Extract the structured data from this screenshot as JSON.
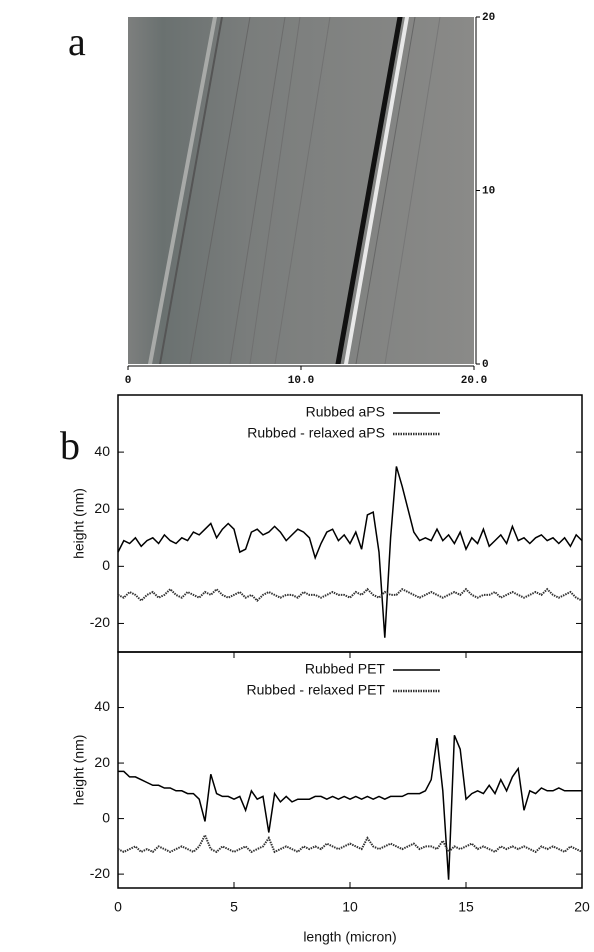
{
  "chart_data": [
    {
      "type": "image",
      "label": "a",
      "xlim": [
        0,
        20
      ],
      "ylim": [
        0,
        20
      ],
      "xticks": [
        0,
        {
          "value": 10,
          "label": "10.0"
        },
        {
          "value": 20,
          "label": "20.0"
        }
      ],
      "yticks": [
        0,
        10,
        20
      ]
    },
    {
      "type": "line",
      "label": "b",
      "ylabel": "height (nm)",
      "xlim": [
        0,
        20
      ],
      "ylim": [
        -30,
        60
      ],
      "yticks": [
        -20,
        0,
        20,
        40
      ],
      "legend": "top",
      "x": [
        0,
        0.25,
        0.5,
        0.75,
        1,
        1.25,
        1.5,
        1.75,
        2,
        2.25,
        2.5,
        2.75,
        3,
        3.25,
        3.5,
        3.75,
        4,
        4.25,
        4.5,
        4.75,
        5,
        5.25,
        5.5,
        5.75,
        6,
        6.25,
        6.5,
        6.75,
        7,
        7.25,
        7.5,
        7.75,
        8,
        8.25,
        8.5,
        8.75,
        9,
        9.25,
        9.5,
        9.75,
        10,
        10.25,
        10.5,
        10.75,
        11,
        11.25,
        11.5,
        11.75,
        12,
        12.25,
        12.5,
        12.75,
        13,
        13.25,
        13.5,
        13.75,
        14,
        14.25,
        14.5,
        14.75,
        15,
        15.25,
        15.5,
        15.75,
        16,
        16.25,
        16.5,
        16.75,
        17,
        17.25,
        17.5,
        17.75,
        18,
        18.25,
        18.5,
        18.75,
        19,
        19.25,
        19.5,
        19.75,
        20
      ],
      "series": [
        {
          "name": "Rubbed aPS",
          "color": "#000000",
          "style": "solid",
          "values": [
            5,
            9,
            8,
            10,
            7,
            9,
            10,
            8,
            11,
            9,
            8,
            10,
            9,
            12,
            11,
            13,
            15,
            10,
            13,
            15,
            13,
            5,
            6,
            12,
            13,
            11,
            12,
            14,
            12,
            9,
            11,
            13,
            12,
            10,
            3,
            8,
            12,
            13,
            9,
            11,
            8,
            12,
            6,
            18,
            19,
            5,
            -25,
            10,
            35,
            28,
            20,
            12,
            9,
            10,
            9,
            13,
            9,
            11,
            8,
            12,
            6,
            10,
            8,
            13,
            7,
            9,
            11,
            8,
            14,
            9,
            10,
            8,
            10,
            11,
            9,
            10,
            8,
            10,
            7,
            11,
            9
          ]
        },
        {
          "name": "Rubbed - relaxed aPS",
          "color": "#333333",
          "style": "dotted",
          "values": [
            -10,
            -11,
            -9,
            -10,
            -12,
            -10,
            -9,
            -11,
            -10,
            -8,
            -10,
            -11,
            -9,
            -10,
            -11,
            -9,
            -10,
            -8,
            -10,
            -11,
            -10,
            -9,
            -11,
            -10,
            -12,
            -10,
            -9,
            -10,
            -11,
            -10,
            -10,
            -11,
            -9,
            -10,
            -10,
            -11,
            -10,
            -9,
            -10,
            -10,
            -11,
            -9,
            -10,
            -8,
            -10,
            -11,
            -9,
            -10,
            -10,
            -8,
            -9,
            -10,
            -11,
            -10,
            -9,
            -10,
            -11,
            -10,
            -9,
            -10,
            -8,
            -10,
            -11,
            -10,
            -10,
            -9,
            -11,
            -10,
            -9,
            -10,
            -11,
            -10,
            -9,
            -10,
            -8,
            -10,
            -11,
            -10,
            -9,
            -11,
            -12
          ]
        }
      ]
    },
    {
      "type": "line",
      "ylabel": "height (nm)",
      "xlabel": "length (micron)",
      "xlim": [
        0,
        20
      ],
      "ylim": [
        -25,
        60
      ],
      "xticks": [
        0,
        5,
        10,
        15,
        20
      ],
      "yticks": [
        -20,
        0,
        20,
        40
      ],
      "legend": "top",
      "x": [
        0,
        0.25,
        0.5,
        0.75,
        1,
        1.25,
        1.5,
        1.75,
        2,
        2.25,
        2.5,
        2.75,
        3,
        3.25,
        3.5,
        3.75,
        4,
        4.25,
        4.5,
        4.75,
        5,
        5.25,
        5.5,
        5.75,
        6,
        6.25,
        6.5,
        6.75,
        7,
        7.25,
        7.5,
        7.75,
        8,
        8.25,
        8.5,
        8.75,
        9,
        9.25,
        9.5,
        9.75,
        10,
        10.25,
        10.5,
        10.75,
        11,
        11.25,
        11.5,
        11.75,
        12,
        12.25,
        12.5,
        12.75,
        13,
        13.25,
        13.5,
        13.75,
        14,
        14.25,
        14.5,
        14.75,
        15,
        15.25,
        15.5,
        15.75,
        16,
        16.25,
        16.5,
        16.75,
        17,
        17.25,
        17.5,
        17.75,
        18,
        18.25,
        18.5,
        18.75,
        19,
        19.25,
        19.5,
        19.75,
        20
      ],
      "series": [
        {
          "name": "Rubbed PET",
          "color": "#000000",
          "style": "solid",
          "values": [
            17,
            17,
            15,
            15,
            14,
            13,
            12,
            12,
            11,
            11,
            10,
            10,
            9,
            9,
            7,
            -1,
            16,
            9,
            8,
            8,
            7,
            8,
            3,
            10,
            7,
            8,
            -5,
            9,
            6,
            8,
            6,
            7,
            7,
            7,
            8,
            8,
            7,
            8,
            7,
            8,
            7,
            8,
            7,
            8,
            7,
            8,
            7,
            8,
            8,
            8,
            9,
            9,
            9,
            10,
            14,
            29,
            10,
            -22,
            30,
            25,
            7,
            9,
            10,
            9,
            12,
            9,
            14,
            10,
            15,
            18,
            3,
            10,
            9,
            11,
            10,
            10,
            11,
            10,
            10,
            10,
            10
          ]
        },
        {
          "name": "Rubbed - relaxed PET",
          "color": "#333333",
          "style": "dotted",
          "values": [
            -11,
            -12,
            -11,
            -10,
            -12,
            -11,
            -12,
            -10,
            -11,
            -12,
            -11,
            -10,
            -11,
            -12,
            -10,
            -6,
            -11,
            -12,
            -10,
            -11,
            -12,
            -11,
            -10,
            -12,
            -11,
            -10,
            -7,
            -12,
            -11,
            -10,
            -11,
            -12,
            -10,
            -11,
            -10,
            -11,
            -9,
            -10,
            -11,
            -10,
            -9,
            -10,
            -11,
            -7,
            -10,
            -11,
            -10,
            -9,
            -10,
            -11,
            -10,
            -9,
            -11,
            -10,
            -10,
            -11,
            -8,
            -12,
            -10,
            -11,
            -10,
            -9,
            -11,
            -10,
            -11,
            -12,
            -10,
            -11,
            -10,
            -11,
            -10,
            -11,
            -12,
            -10,
            -11,
            -10,
            -11,
            -12,
            -10,
            -11,
            -12
          ]
        }
      ]
    }
  ]
}
